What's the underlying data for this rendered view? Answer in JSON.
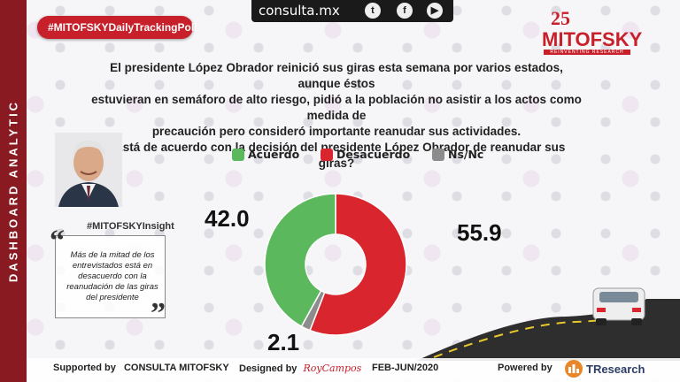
{
  "sidebar": {
    "label": "DASHBOARD ANALYTIC"
  },
  "header": {
    "site": "consulta.mx",
    "social_icons": [
      "twitter-icon",
      "facebook-icon",
      "youtube-icon"
    ],
    "hashtag": "#MITOFSKYDailyTrackingPoll",
    "logo_number": "25",
    "logo_name": "MITOFSKY",
    "logo_tagline": "REINVENTING RESEARCH"
  },
  "question": {
    "line1": "El presidente López Obrador reinició sus giras esta semana por varios estados, aunque éstos",
    "line2": "estuvieran en semáforo de alto riesgo, pidió a la población no asistir a los actos como medida de",
    "line3": "precaución pero consideró importante reanudar sus actividades.",
    "line4": "¿Está de acuerdo con la decisión del presidente López Obrador de reanudar sus giras?"
  },
  "insight": {
    "title": "#MITOFSKYInsight",
    "text": "Más de la mitad de los entrevistados está en desacuerdo con la reanudación de las giras del presidente"
  },
  "chart_data": {
    "type": "pie",
    "donut": true,
    "categories": [
      "Acuerdo",
      "Desacuerdo",
      "Ns/Nc"
    ],
    "values": [
      42.0,
      55.9,
      2.1
    ],
    "value_labels": [
      "42.0",
      "55.9",
      "2.1"
    ],
    "colors": [
      "#5cb85c",
      "#d9262e",
      "#8c8c8c"
    ],
    "legend_position": "top"
  },
  "footer": {
    "supported_label": "Supported by",
    "supported_value": "CONSULTA MITOFSKY",
    "designed_label": "Designed by",
    "designed_value": "RoyCampos",
    "period": "FEB-JUN/2020",
    "powered_label": "Powered by",
    "powered_value": "TResearch"
  }
}
